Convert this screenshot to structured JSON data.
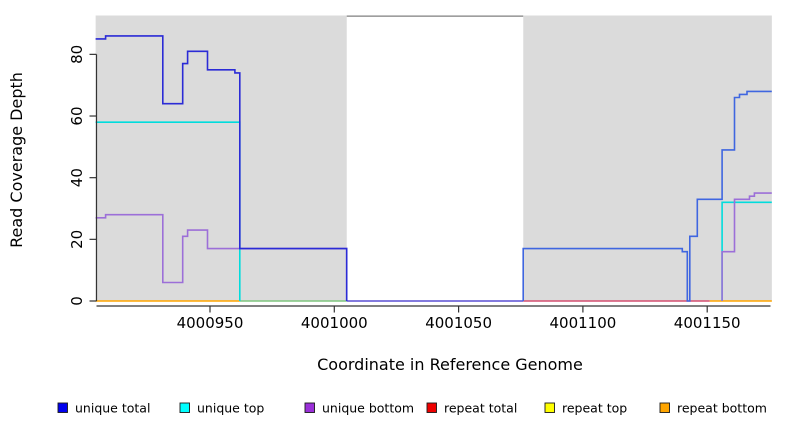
{
  "chart_data": {
    "type": "line",
    "title": "",
    "xlabel": "Coordinate in Reference Genome",
    "ylabel": "Read Coverage Depth",
    "xlim": [
      4000904,
      4001176
    ],
    "ylim": [
      0,
      92
    ],
    "grid": false,
    "x_ticks": [
      4000950,
      4001000,
      4001050,
      4001100,
      4001150
    ],
    "y_ticks": [
      0,
      20,
      40,
      60,
      80
    ],
    "shaded_regions": [
      {
        "from": 4000904,
        "to": 4001005,
        "color": "#DBDBDB"
      },
      {
        "from": 4001076,
        "to": 4001176,
        "color": "#DBDBDB"
      }
    ],
    "gap_region": {
      "from": 4001005,
      "to": 4001076,
      "border_color": "#7F7F7F"
    },
    "series": [
      {
        "name": "unique top",
        "part": "left",
        "color": "#00DCDC",
        "points": [
          [
            4000904,
            58
          ],
          [
            4000962,
            0
          ]
        ]
      },
      {
        "name": "unique bottom",
        "part": "left",
        "color": "#9C6FD8",
        "points": [
          [
            4000904,
            27
          ],
          [
            4000908,
            28
          ],
          [
            4000931,
            6
          ],
          [
            4000939,
            21
          ],
          [
            4000941,
            23
          ],
          [
            4000949,
            17
          ],
          [
            4001005,
            0
          ]
        ]
      },
      {
        "name": "unique total",
        "part": "left",
        "color": "#2B2BD6",
        "points": [
          [
            4000904,
            85
          ],
          [
            4000908,
            86
          ],
          [
            4000931,
            64
          ],
          [
            4000939,
            77
          ],
          [
            4000941,
            81
          ],
          [
            4000949,
            75
          ],
          [
            4000960,
            74
          ],
          [
            4000962,
            17
          ],
          [
            4001005,
            0
          ]
        ]
      },
      {
        "name": "unique top",
        "part": "right",
        "color": "#00DCDC",
        "points": [
          [
            4001156,
            0
          ],
          [
            4001156,
            32
          ],
          [
            4001176,
            32
          ]
        ]
      },
      {
        "name": "unique bottom",
        "part": "right",
        "color": "#9C6FD8",
        "points": [
          [
            4001156,
            0
          ],
          [
            4001156,
            16
          ],
          [
            4001161,
            33
          ],
          [
            4001167,
            34
          ],
          [
            4001169,
            35
          ],
          [
            4001176,
            35
          ]
        ]
      },
      {
        "name": "unique total",
        "part": "right",
        "color": "#3F66E0",
        "points": [
          [
            4001076,
            0
          ],
          [
            4001076,
            17
          ],
          [
            4001140,
            16
          ],
          [
            4001142,
            0
          ],
          [
            4001143,
            21
          ],
          [
            4001146,
            33
          ],
          [
            4001156,
            49
          ],
          [
            4001161,
            66
          ],
          [
            4001163,
            67
          ],
          [
            4001166,
            68
          ],
          [
            4001176,
            68
          ]
        ]
      }
    ],
    "zero_line_segments": [
      {
        "from": 4000904,
        "to": 4000962,
        "color": "#FFA500"
      },
      {
        "from": 4000962,
        "to": 4001005,
        "color": "#7FC57F"
      },
      {
        "from": 4001005,
        "to": 4001076,
        "color": "#5A4FD4"
      },
      {
        "from": 4001076,
        "to": 4001151,
        "color": "#D44F70"
      },
      {
        "from": 4001151,
        "to": 4001176,
        "color": "#FFA500"
      }
    ],
    "legend_position": "bottom"
  },
  "legend": {
    "items": [
      {
        "label": "unique total",
        "color": "#0000EE"
      },
      {
        "label": "unique top",
        "color": "#00FFFF"
      },
      {
        "label": "unique bottom",
        "color": "#9B30D9"
      },
      {
        "label": "repeat total",
        "color": "#EE0000"
      },
      {
        "label": "repeat top",
        "color": "#FFFF00"
      },
      {
        "label": "repeat bottom",
        "color": "#FFA500"
      }
    ]
  }
}
